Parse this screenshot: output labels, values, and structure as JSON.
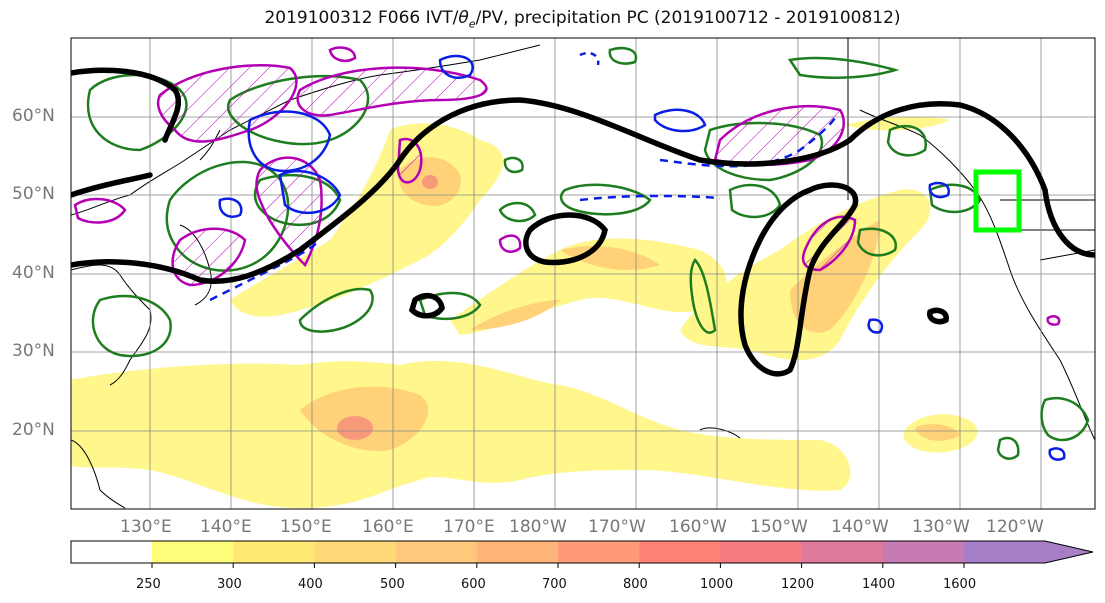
{
  "title_prefix": "2019100312 F066 IVT/",
  "title_theta": "θ",
  "title_sub": "e",
  "title_suffix": "/PV, precipitation PC (2019100712 - 2019100812)",
  "lat_labels": [
    "60°N",
    "50°N",
    "40°N",
    "30°N",
    "20°N"
  ],
  "lon_labels": [
    "130°E",
    "140°E",
    "150°E",
    "160°E",
    "170°E",
    "180°W",
    "170°W",
    "160°W",
    "150°W",
    "140°W",
    "130°W",
    "120°W"
  ],
  "colorbar": {
    "levels": [
      "250",
      "300",
      "400",
      "500",
      "600",
      "700",
      "800",
      "1000",
      "1200",
      "1400",
      "1600"
    ],
    "colors": [
      "#fffd7a",
      "#ffe873",
      "#ffd878",
      "#ffc87a",
      "#ffb57a",
      "#ff9a78",
      "#ff8278",
      "#f57a82",
      "#de7a9a",
      "#c87ab4",
      "#a77ec8"
    ]
  },
  "map_colors": {
    "ivt_low": "#fff68c",
    "ivt_mid": "#ffd27a",
    "ivt_high": "#f79a7a",
    "theta_e": "#000000",
    "precip_green": "#1e7d1e",
    "pv_magenta": "#b400b4",
    "pv_blue": "#0a1ee6",
    "target_box": "#00ff00"
  }
}
